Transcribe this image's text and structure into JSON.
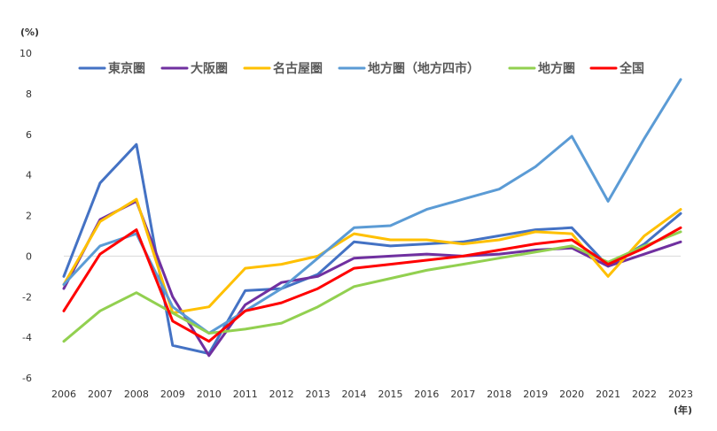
{
  "chart_data": {
    "type": "line",
    "y_unit": "(%)",
    "x_unit": "(年)",
    "categories": [
      "2006",
      "2007",
      "2008",
      "2009",
      "2010",
      "2011",
      "2012",
      "2013",
      "2014",
      "2015",
      "2016",
      "2017",
      "2018",
      "2019",
      "2020",
      "2021",
      "2022",
      "2023"
    ],
    "ylim": [
      -6,
      10
    ],
    "yticks": [
      -6,
      -4,
      -2,
      0,
      2,
      4,
      6,
      8,
      10
    ],
    "grid": false,
    "legend_position": "top",
    "series": [
      {
        "name": "東京圏",
        "color": "#4472C4",
        "values": [
          -1.0,
          3.6,
          5.5,
          -4.4,
          -4.8,
          -1.7,
          -1.6,
          -0.9,
          0.7,
          0.5,
          0.6,
          0.7,
          1.0,
          1.3,
          1.4,
          -0.5,
          0.6,
          2.1
        ]
      },
      {
        "name": "大阪圏",
        "color": "#7030A0",
        "values": [
          -1.6,
          1.8,
          2.7,
          -2.0,
          -4.9,
          -2.4,
          -1.3,
          -1.0,
          -0.1,
          0.0,
          0.1,
          0.0,
          0.1,
          0.3,
          0.4,
          -0.5,
          0.1,
          0.7
        ]
      },
      {
        "name": "名古屋圏",
        "color": "#FFC000",
        "values": [
          -1.4,
          1.7,
          2.8,
          -2.8,
          -2.5,
          -0.6,
          -0.4,
          0.0,
          1.1,
          0.8,
          0.8,
          0.6,
          0.8,
          1.2,
          1.1,
          -1.0,
          1.0,
          2.3
        ]
      },
      {
        "name": "地方圏（地方四市）",
        "color": "#5B9BD5",
        "values": [
          -1.4,
          0.5,
          1.1,
          -2.5,
          -3.8,
          -2.7,
          -1.6,
          -0.1,
          1.4,
          1.5,
          2.3,
          2.8,
          3.3,
          4.4,
          5.9,
          2.7,
          5.8,
          8.7
        ]
      },
      {
        "name": "地方圏",
        "color": "#92D050",
        "values": [
          -4.2,
          -2.7,
          -1.8,
          -2.8,
          -3.8,
          -3.6,
          -3.3,
          -2.5,
          -1.5,
          -1.1,
          -0.7,
          -0.4,
          -0.1,
          0.2,
          0.5,
          -0.3,
          0.5,
          1.2
        ]
      },
      {
        "name": "全国",
        "color": "#FF0000",
        "values": [
          -2.7,
          0.1,
          1.3,
          -3.2,
          -4.2,
          -2.7,
          -2.3,
          -1.6,
          -0.6,
          -0.4,
          -0.2,
          0.0,
          0.3,
          0.6,
          0.8,
          -0.4,
          0.4,
          1.4
        ]
      }
    ]
  }
}
